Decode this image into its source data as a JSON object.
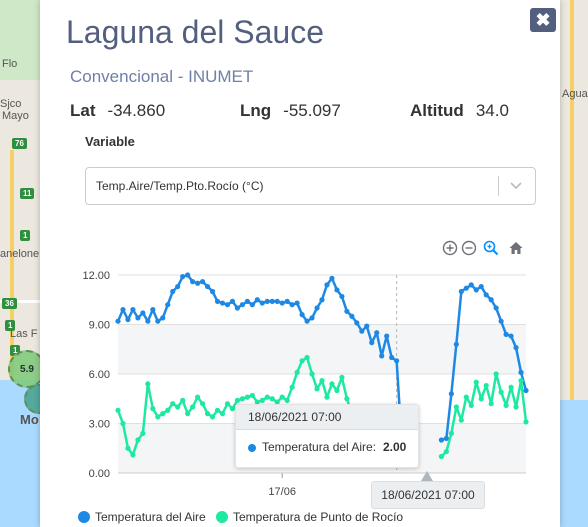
{
  "map": {
    "labels": [
      "Flo",
      "Sjco",
      "Mayo",
      "anelone",
      "Las F",
      "Mo",
      "Agua"
    ],
    "badges": [
      "76",
      "11",
      "1",
      "36",
      "1",
      "1"
    ],
    "cluster": "5.9"
  },
  "modal": {
    "title": "Laguna del Sauce",
    "subtitle": "Convencional - INUMET",
    "lat_label": "Lat",
    "lat_value": "-34.860",
    "lng_label": "Lng",
    "lng_value": "-55.097",
    "alt_label": "Altitud",
    "alt_value": "34.0",
    "variable_label": "Variable",
    "variable_value": "Temp.Aire/Temp.Pto.Rocío (°C)",
    "close_icon": "times-icon"
  },
  "toolbar": {
    "icons": [
      "zoom-in-icon",
      "zoom-out-icon",
      "zoom-select-icon",
      "home-icon"
    ]
  },
  "tooltip": {
    "time": "18/06/2021 07:00",
    "series": "Temperatura del Aire:",
    "value": "2.00"
  },
  "xaxis_tooltip": "18/06/2021 07:00",
  "colors": {
    "air": "#1e88e5",
    "dew": "#1de9a0",
    "accent": "#525f7f"
  },
  "chart_data": {
    "type": "line",
    "xlabel": "",
    "ylabel": "",
    "ylim": [
      0,
      12
    ],
    "yticks": [
      "0.00",
      "3.00",
      "6.00",
      "9.00",
      "12.00"
    ],
    "xticks": [
      {
        "label": "17/06",
        "index": 33
      }
    ],
    "series": [
      {
        "name": "Temperatura del Aire",
        "values": [
          9.2,
          9.9,
          9.3,
          9.9,
          9.4,
          9.7,
          9.2,
          9.9,
          9.2,
          9.4,
          10.2,
          11.0,
          11.3,
          11.9,
          12.0,
          11.6,
          11.5,
          11.6,
          11.3,
          11.0,
          10.4,
          10.3,
          10.2,
          10.4,
          10.0,
          10.2,
          10.4,
          10.2,
          10.5,
          10.3,
          10.4,
          10.4,
          10.4,
          10.3,
          10.4,
          10.2,
          10.3,
          9.6,
          9.2,
          9.4,
          10.0,
          10.5,
          11.4,
          11.8,
          11.1,
          10.7,
          9.8,
          9.5,
          9.1,
          8.6,
          8.9,
          7.9,
          8.5,
          7.1,
          8.3,
          7.0,
          6.8,
          2.0,
          null,
          null,
          null,
          null,
          null,
          null,
          null,
          2.0,
          2.1,
          4.8,
          7.8,
          11.0,
          11.2,
          11.4,
          11.1,
          11.3,
          10.8,
          10.5,
          10.0,
          9.2,
          8.4,
          8.3,
          7.6,
          6.1,
          5.0
        ],
        "color": "#1e88e5"
      },
      {
        "name": "Temperatura de Punto de Rocío",
        "values": [
          3.8,
          3.0,
          1.5,
          1.1,
          2.0,
          2.4,
          5.4,
          3.9,
          3.4,
          3.6,
          3.8,
          4.2,
          4.0,
          4.4,
          3.6,
          4.0,
          4.6,
          4.2,
          3.6,
          3.4,
          3.8,
          3.6,
          4.2,
          3.9,
          4.4,
          4.5,
          4.6,
          4.7,
          4.3,
          4.4,
          4.6,
          4.5,
          4.3,
          4.6,
          4.4,
          5.2,
          6.1,
          6.8,
          7.0,
          6.0,
          5.1,
          5.6,
          4.6,
          5.4,
          5.0,
          5.8,
          4.5,
          3.6,
          3.0,
          2.4,
          2.7,
          3.2,
          3.6,
          3.2,
          3.0,
          3.8,
          3.4,
          1.7,
          null,
          null,
          null,
          null,
          null,
          null,
          null,
          1.0,
          1.3,
          2.4,
          4.0,
          3.2,
          4.6,
          4.1,
          5.5,
          4.5,
          5.3,
          4.2,
          6.0,
          4.9,
          4.1,
          5.2,
          4.0,
          5.6,
          3.1
        ],
        "color": "#1de9a0"
      }
    ]
  },
  "legend": [
    {
      "label": "Temperatura del Aire",
      "color": "#1e88e5"
    },
    {
      "label": "Temperatura de Punto de Rocío",
      "color": "#1de9a0"
    }
  ]
}
